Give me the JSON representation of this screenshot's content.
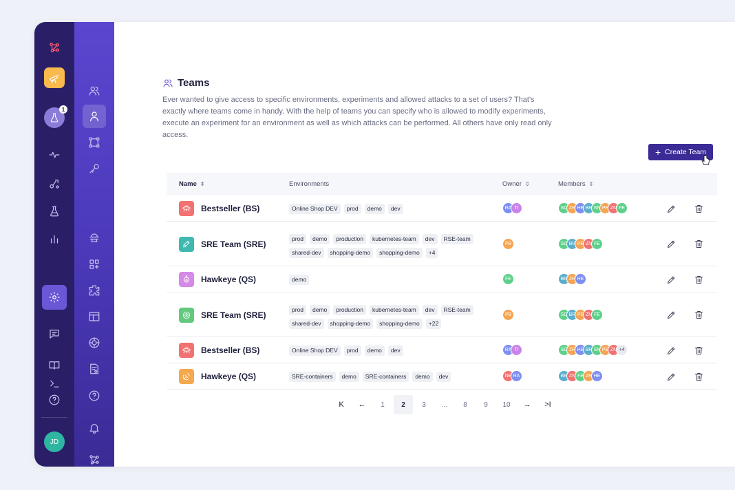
{
  "colors": {
    "rail": "#2a1f66",
    "subnav": "#5b46cf",
    "primary": "#3a2b96",
    "accent_logo": "#ff5a6e"
  },
  "rail": {
    "notification_badge": "1",
    "user_initials": "JD",
    "icons": [
      "logo-icon",
      "telescope-icon",
      "flask-icon",
      "activity-icon",
      "integrations-icon",
      "flask-outline-icon",
      "bar-chart-icon",
      "settings-icon",
      "chat-icon",
      "book-icon",
      "terminal-icon",
      "help-icon"
    ]
  },
  "subnav": {
    "icons": [
      "teams-icon",
      "user-icon",
      "frame-icon",
      "key-icon",
      "agent-icon",
      "add-grid-icon",
      "extensions-icon",
      "layout-icon",
      "network-icon",
      "audit-icon",
      "help-circle-icon",
      "bell-icon",
      "graph-icon"
    ]
  },
  "page": {
    "title": "Teams",
    "description": "Ever wanted to give access to specific environments, experiments and allowed attacks to a set of users? That's exactly where teams come in handy. With the help of teams you can specify who is allowed to modify experiments, execute an experiment for an environment as well as which attacks can be performed. All others have only read only access.",
    "create_button": "Create Team"
  },
  "table": {
    "columns": {
      "name": "Name",
      "environments": "Environments",
      "owner": "Owner",
      "members": "Members"
    },
    "rows": [
      {
        "name": "Bestseller (BS)",
        "icon": "ufo-icon",
        "icon_color": "#f27171",
        "environments": [
          "Online Shop DEV",
          "prod",
          "demo",
          "dev"
        ],
        "owners": [
          {
            "i": "RA",
            "c": "#7e8ff0"
          },
          {
            "i": "TI",
            "c": "#c983e8"
          }
        ],
        "members": [
          {
            "i": "SC",
            "c": "#5ed08a"
          },
          {
            "i": "ZR",
            "c": "#f4a452"
          },
          {
            "i": "HE",
            "c": "#7e8ff0"
          },
          {
            "i": "BR",
            "c": "#5aaecb"
          },
          {
            "i": "SN",
            "c": "#5ed08a"
          },
          {
            "i": "PE",
            "c": "#f4a452"
          },
          {
            "i": "ZN",
            "c": "#f27171"
          },
          {
            "i": "FE",
            "c": "#5ed08a"
          }
        ],
        "members_more": ""
      },
      {
        "name": "SRE Team (SRE)",
        "icon": "rocket-icon",
        "icon_color": "#3fb8b0",
        "environments": [
          "prod",
          "demo",
          "production",
          "kubernetes-team",
          "dev",
          "RSE-team",
          "shared-dev",
          "shopping-demo",
          "shopping-demo",
          "+4"
        ],
        "owners": [
          {
            "i": "PB",
            "c": "#f4a452"
          }
        ],
        "members": [
          {
            "i": "SC",
            "c": "#5ed08a"
          },
          {
            "i": "BR",
            "c": "#5aaecb"
          },
          {
            "i": "PE",
            "c": "#f4a452"
          },
          {
            "i": "ZN",
            "c": "#f27171"
          },
          {
            "i": "FE",
            "c": "#5ed08a"
          }
        ],
        "members_more": ""
      },
      {
        "name": "Hawkeye (QS)",
        "icon": "potion-icon",
        "icon_color": "#d58ae8",
        "environments": [
          "demo"
        ],
        "owners": [
          {
            "i": "FE",
            "c": "#5ed08a"
          }
        ],
        "members": [
          {
            "i": "BR",
            "c": "#5aaecb"
          },
          {
            "i": "ZR",
            "c": "#f4a452"
          },
          {
            "i": "HE",
            "c": "#7e8ff0"
          }
        ],
        "members_more": ""
      },
      {
        "name": "SRE Team (SRE)",
        "icon": "target-icon",
        "icon_color": "#62c97e",
        "environments": [
          "prod",
          "demo",
          "production",
          "kubernetes-team",
          "dev",
          "RSE-team",
          "shared-dev",
          "shopping-demo",
          "shopping-demo",
          "+22"
        ],
        "owners": [
          {
            "i": "PB",
            "c": "#f4a452"
          }
        ],
        "members": [
          {
            "i": "SC",
            "c": "#5ed08a"
          },
          {
            "i": "BR",
            "c": "#5aaecb"
          },
          {
            "i": "PE",
            "c": "#f4a452"
          },
          {
            "i": "ZN",
            "c": "#f27171"
          },
          {
            "i": "FE",
            "c": "#5ed08a"
          }
        ],
        "members_more": ""
      },
      {
        "name": "Bestseller (BS)",
        "icon": "ufo-icon",
        "icon_color": "#f27171",
        "environments": [
          "Online Shop DEV",
          "prod",
          "demo",
          "dev"
        ],
        "owners": [
          {
            "i": "RA",
            "c": "#7e8ff0"
          },
          {
            "i": "TI",
            "c": "#c983e8"
          }
        ],
        "members": [
          {
            "i": "SC",
            "c": "#5ed08a"
          },
          {
            "i": "ZR",
            "c": "#f4a452"
          },
          {
            "i": "HE",
            "c": "#7e8ff0"
          },
          {
            "i": "BR",
            "c": "#5aaecb"
          },
          {
            "i": "SN",
            "c": "#5ed08a"
          },
          {
            "i": "PE",
            "c": "#f4a452"
          },
          {
            "i": "ZN",
            "c": "#f27171"
          }
        ],
        "members_more": "+4"
      },
      {
        "name": "Hawkeye (QS)",
        "icon": "satellite-icon",
        "icon_color": "#f5a94e",
        "environments": [
          "SRE-containers",
          "demo",
          "SRE-containers",
          "demo",
          "dev"
        ],
        "owners": [
          {
            "i": "NE",
            "c": "#f27171"
          },
          {
            "i": "RA",
            "c": "#7e8ff0"
          }
        ],
        "members": [
          {
            "i": "BR",
            "c": "#5aaecb"
          },
          {
            "i": "ZN",
            "c": "#f27171"
          },
          {
            "i": "FE",
            "c": "#5ed08a"
          },
          {
            "i": "ZR",
            "c": "#f4a452"
          },
          {
            "i": "HE",
            "c": "#7e8ff0"
          }
        ],
        "members_more": ""
      }
    ]
  },
  "pagination": {
    "first": "K",
    "prev": "←",
    "pages": [
      "1",
      "2",
      "3",
      "...",
      "8",
      "9",
      "10"
    ],
    "current": "2",
    "next": "→",
    "last": ">I"
  }
}
